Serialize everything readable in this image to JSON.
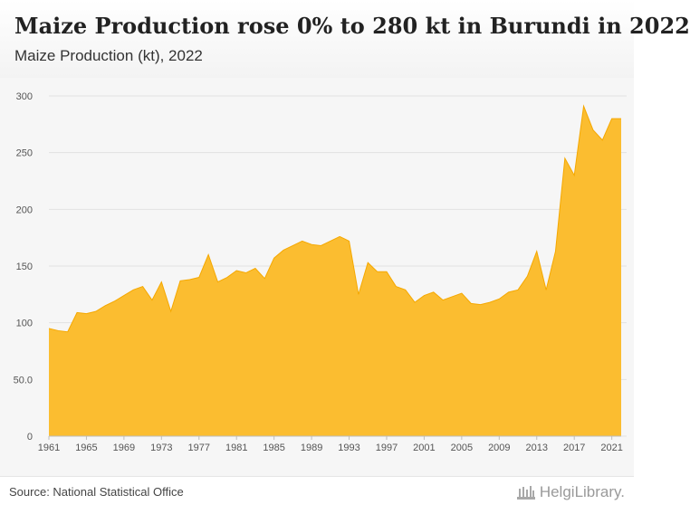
{
  "header": {
    "title": "Maize Production rose 0% to 280 kt in Burundi in 2022",
    "subtitle": "Maize Production (kt), 2022"
  },
  "footer": {
    "source": "Source: National Statistical Office",
    "logo_text": "HelgiLibrary."
  },
  "colors": {
    "area_fill": "#fbbd30",
    "area_stroke": "#f5a800",
    "gridline": "#e2e2e2",
    "background": "#f6f6f6"
  },
  "chart_data": {
    "type": "area",
    "title": "Maize Production rose 0% to 280 kt in Burundi in 2022",
    "subtitle": "Maize Production (kt), 2022",
    "xlabel": "",
    "ylabel": "",
    "ylim": [
      0,
      300
    ],
    "y_ticks": [
      0,
      50,
      100,
      150,
      200,
      250,
      300
    ],
    "y_tick_labels": [
      "0",
      "50.0",
      "100",
      "150",
      "200",
      "250",
      "300"
    ],
    "x_tick_labels": [
      "1961",
      "1965",
      "1969",
      "1973",
      "1977",
      "1981",
      "1985",
      "1989",
      "1993",
      "1997",
      "2001",
      "2005",
      "2009",
      "2013",
      "2017",
      "2021"
    ],
    "grid": "horizontal",
    "legend": "none",
    "x": [
      1961,
      1962,
      1963,
      1964,
      1965,
      1966,
      1967,
      1968,
      1969,
      1970,
      1971,
      1972,
      1973,
      1974,
      1975,
      1976,
      1977,
      1978,
      1979,
      1980,
      1981,
      1982,
      1983,
      1984,
      1985,
      1986,
      1987,
      1988,
      1989,
      1990,
      1991,
      1992,
      1993,
      1994,
      1995,
      1996,
      1997,
      1998,
      1999,
      2000,
      2001,
      2002,
      2003,
      2004,
      2005,
      2006,
      2007,
      2008,
      2009,
      2010,
      2011,
      2012,
      2013,
      2014,
      2015,
      2016,
      2017,
      2018,
      2019,
      2020,
      2021,
      2022
    ],
    "series": [
      {
        "values": [
          95,
          93,
          92,
          109,
          108,
          110,
          115,
          119,
          124,
          129,
          132,
          120,
          136,
          110,
          137,
          138,
          140,
          160,
          136,
          140,
          146,
          144,
          148,
          139,
          157,
          164,
          168,
          172,
          169,
          168,
          172,
          176,
          172,
          125,
          153,
          145,
          145,
          132,
          129,
          118,
          124,
          127,
          120,
          123,
          126,
          117,
          116,
          118,
          121,
          127,
          129,
          141,
          163,
          129,
          163,
          245,
          230,
          291,
          270,
          261,
          280,
          280
        ]
      }
    ]
  }
}
